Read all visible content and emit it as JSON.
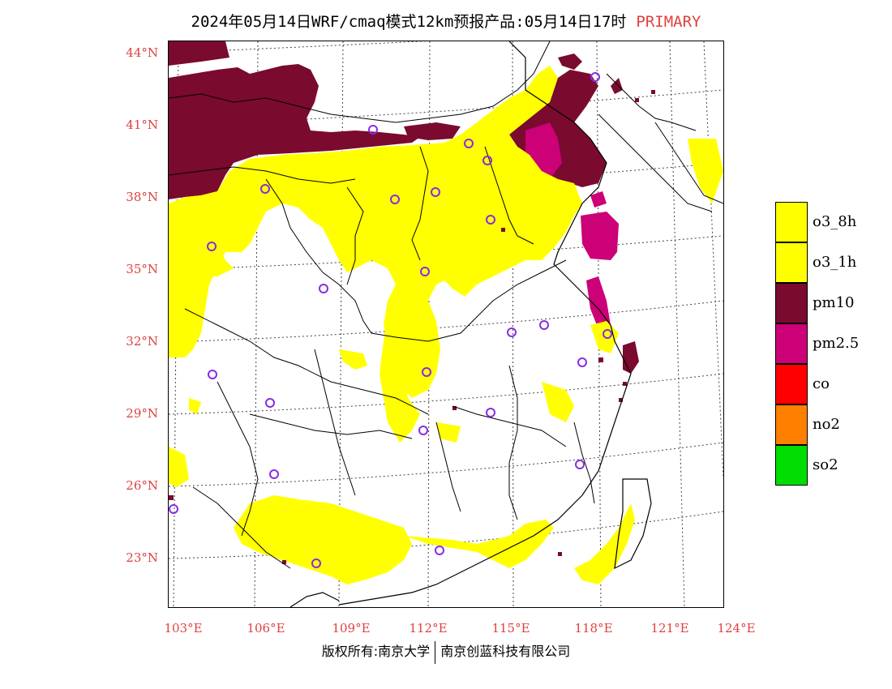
{
  "title": {
    "text": "2024年05月14日WRF/cmaq模式12km预报产品:05月14日17时",
    "tag": "PRIMARY"
  },
  "lat_labels": [
    "44°N",
    "41°N",
    "38°N",
    "35°N",
    "32°N",
    "29°N",
    "26°N",
    "23°N"
  ],
  "lon_labels": [
    "103°E",
    "106°E",
    "109°E",
    "112°E",
    "115°E",
    "118°E",
    "121°E",
    "124°E"
  ],
  "legend": [
    {
      "label": "o3_8h",
      "color": "#ffff00"
    },
    {
      "label": "o3_1h",
      "color": "#ffff00"
    },
    {
      "label": "pm10",
      "color": "#7a0a2e"
    },
    {
      "label": "pm2.5",
      "color": "#cc0077"
    },
    {
      "label": "co",
      "color": "#ff0000"
    },
    {
      "label": "no2",
      "color": "#ff7f00"
    },
    {
      "label": "so2",
      "color": "#00dd00"
    }
  ],
  "credits": {
    "left": "版权所有:南京大学",
    "right": "南京创蓝科技有限公司"
  },
  "colors": {
    "accent_label": "#e04040",
    "station_marker": "#8a2be2"
  }
}
